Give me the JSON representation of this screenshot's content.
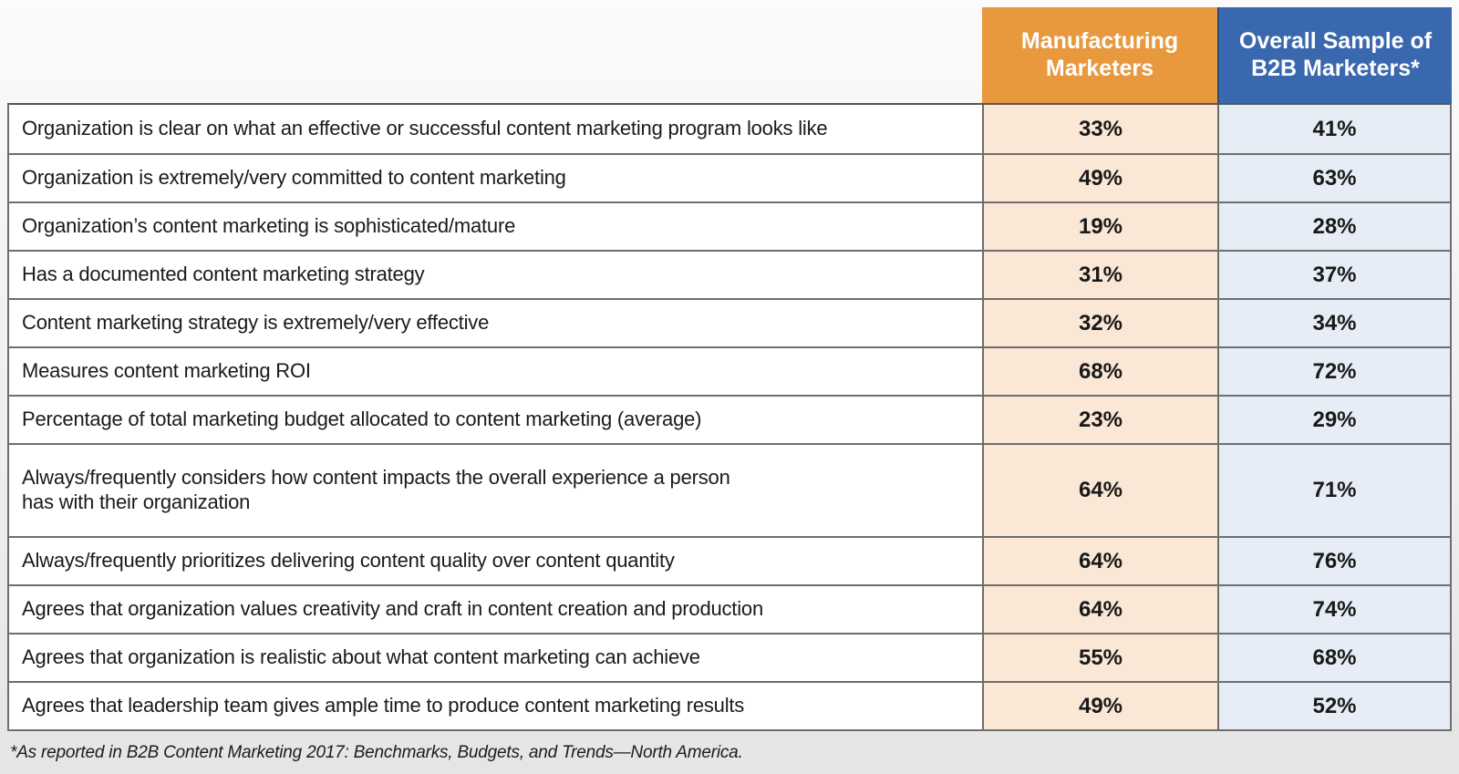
{
  "colors": {
    "orange_header": "#E8983D",
    "blue_header": "#3A68AE",
    "orange_cell": "#FAE7D5",
    "blue_cell": "#E6EDF6",
    "line": "#6e6e6e",
    "header_divider": "#2a4a7d"
  },
  "table": {
    "columns": [
      {
        "label": "Manufacturing Marketers"
      },
      {
        "label": "Overall Sample of B2B Marketers*"
      }
    ],
    "rows": [
      {
        "label": "Organization is clear on what an effective or successful content marketing program looks like",
        "values": [
          "33%",
          "41%"
        ]
      },
      {
        "label": "Organization is extremely/very committed to content marketing",
        "values": [
          "49%",
          "63%"
        ]
      },
      {
        "label": "Organization’s content marketing is sophisticated/mature",
        "values": [
          "19%",
          "28%"
        ]
      },
      {
        "label": "Has a documented content marketing strategy",
        "values": [
          "31%",
          "37%"
        ]
      },
      {
        "label": "Content marketing strategy is extremely/very effective",
        "values": [
          "32%",
          "34%"
        ]
      },
      {
        "label": "Measures content marketing ROI",
        "values": [
          "68%",
          "72%"
        ]
      },
      {
        "label": "Percentage of total marketing budget allocated to content marketing (average)",
        "values": [
          "23%",
          "29%"
        ]
      },
      {
        "label": "Always/frequently considers how content impacts the overall experience a person\nhas with their organization",
        "values": [
          "64%",
          "71%"
        ]
      },
      {
        "label": "Always/frequently prioritizes delivering content quality over content quantity",
        "values": [
          "64%",
          "76%"
        ]
      },
      {
        "label": "Agrees that organization values creativity and craft in content creation and production",
        "values": [
          "64%",
          "74%"
        ]
      },
      {
        "label": "Agrees that organization is realistic about what content marketing can achieve",
        "values": [
          "55%",
          "68%"
        ]
      },
      {
        "label": "Agrees that leadership team gives ample time to produce content marketing results",
        "values": [
          "49%",
          "52%"
        ]
      }
    ]
  },
  "footnote": "*As reported in B2B Content Marketing 2017: Benchmarks, Budgets, and Trends—North America.",
  "chart_data": {
    "type": "table",
    "title": "",
    "categories": [
      "Organization is clear on what an effective or successful content marketing program looks like",
      "Organization is extremely/very committed to content marketing",
      "Organization’s content marketing is sophisticated/mature",
      "Has a documented content marketing strategy",
      "Content marketing strategy is extremely/very effective",
      "Measures content marketing ROI",
      "Percentage of total marketing budget allocated to content marketing (average)",
      "Always/frequently considers how content impacts the overall experience a person has with their organization",
      "Always/frequently prioritizes delivering content quality over content quantity",
      "Agrees that organization values creativity and craft in content creation and production",
      "Agrees that organization is realistic about what content marketing can achieve",
      "Agrees that leadership team gives ample time to produce content marketing results"
    ],
    "series": [
      {
        "name": "Manufacturing Marketers",
        "values": [
          33,
          49,
          19,
          31,
          32,
          68,
          23,
          64,
          64,
          64,
          55,
          49
        ]
      },
      {
        "name": "Overall Sample of B2B Marketers*",
        "values": [
          41,
          63,
          28,
          37,
          34,
          72,
          29,
          71,
          76,
          74,
          68,
          52
        ]
      }
    ],
    "unit": "%",
    "footnote": "*As reported in B2B Content Marketing 2017: Benchmarks, Budgets, and Trends—North America."
  }
}
